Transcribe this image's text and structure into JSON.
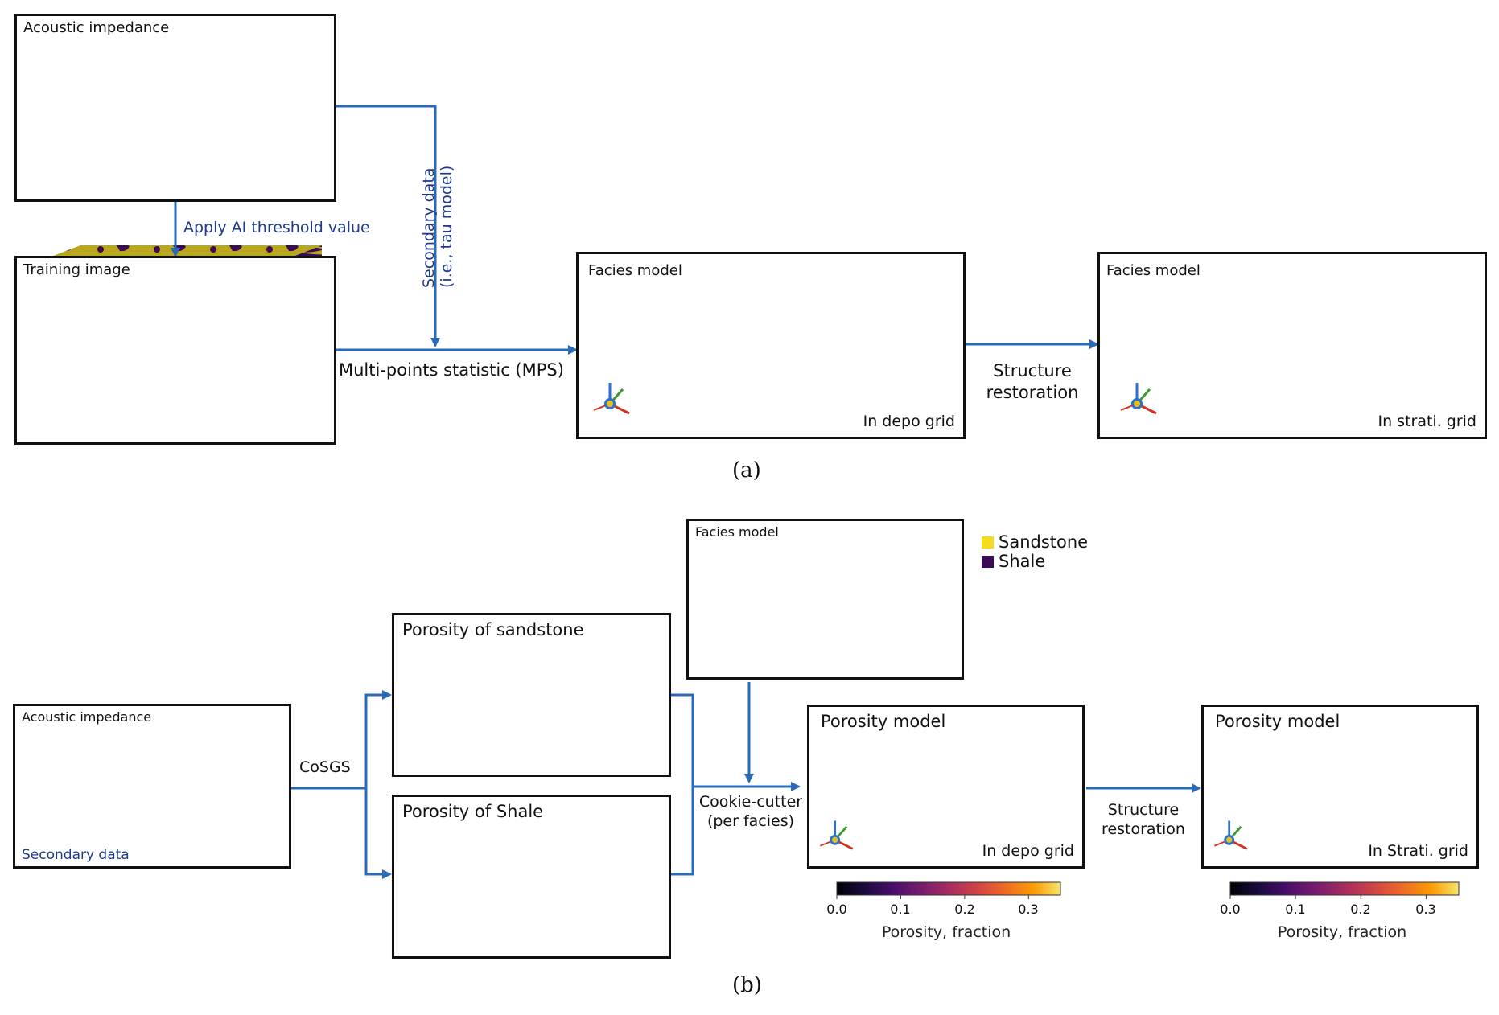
{
  "panel_a": {
    "caption": "(a)",
    "acoustic_box": {
      "title": "Acoustic impedance"
    },
    "training_box": {
      "title": "Training image"
    },
    "facies_depo_box": {
      "title": "Facies model",
      "corner": "In depo grid"
    },
    "facies_strati_box": {
      "title": "Facies model",
      "corner": "In strati. grid"
    },
    "threshold_label": "Apply AI threshold value",
    "secondary_label_line1": "Secondary data",
    "secondary_label_line2": "(i.e., tau model)",
    "mps_label": "Multi-points statistic (MPS)",
    "restoration_line1": "Structure",
    "restoration_line2": "restoration"
  },
  "panel_b": {
    "caption": "(b)",
    "acoustic_box": {
      "title": "Acoustic impedance",
      "corner": "Secondary data"
    },
    "facies_box": {
      "title": "Facies model"
    },
    "legend": [
      {
        "label": "Sandstone",
        "color": "#f5dc1e"
      },
      {
        "label": "Shale",
        "color": "#3a0a55"
      }
    ],
    "sand_box": {
      "title": "Porosity of sandstone"
    },
    "shale_box": {
      "title": "Porosity of Shale"
    },
    "poro_depo_box": {
      "title": "Porosity model",
      "corner": "In depo grid"
    },
    "poro_strati_box": {
      "title": "Porosity model",
      "corner": "In Strati. grid"
    },
    "cosgs_label": "CoSGS",
    "cookie_line1": "Cookie-cutter",
    "cookie_line2": "(per facies)",
    "restoration_line1": "Structure",
    "restoration_line2": "restoration",
    "colorbar": {
      "ticks": [
        "0.0",
        "0.1",
        "0.2",
        "0.3"
      ],
      "label": "Porosity, fraction",
      "range": [
        0.0,
        0.35
      ],
      "colormap": "inferno"
    }
  },
  "colors": {
    "arrow": "#2a6bb8",
    "border": "#111111",
    "facies_yellow": "#e2d21a",
    "facies_purple": "#3b0b57",
    "ai_magenta": "#b13ad0",
    "ai_teal": "#2e9c9a",
    "training_olive": "#b8a820"
  },
  "icons": [
    "axis-triad-icon"
  ]
}
